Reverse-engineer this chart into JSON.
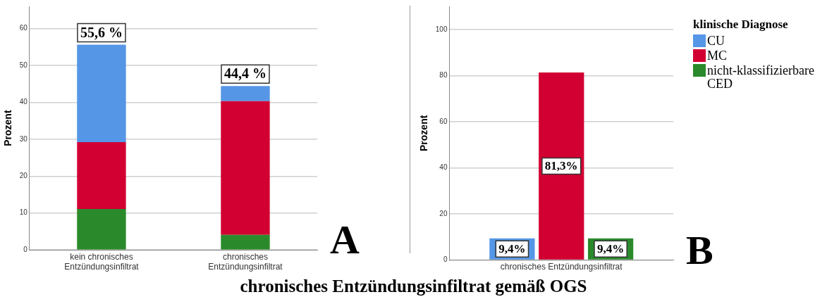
{
  "chart_data": [
    {
      "type": "bar",
      "stacked": true,
      "categories": [
        "kein chronisches\nEntzündungsinfiltrat",
        "chronisches\nEntzündungsinfiltrat"
      ],
      "ylabel": "Prozent",
      "xlabel": "chronisches Entzündungsinfiltrat gemäß OGS",
      "ylim": [
        0,
        66
      ],
      "yticks": [
        0,
        10,
        20,
        30,
        40,
        50,
        60
      ],
      "grid": "y",
      "legend": false,
      "series": [
        {
          "color": "#2a8a2b",
          "values": [
            11.1,
            4.1
          ]
        },
        {
          "color": "#d20032",
          "values": [
            18.1,
            36.2
          ]
        },
        {
          "color": "#5596e6",
          "values": [
            26.4,
            4.1
          ]
        }
      ],
      "totals": [
        "55,6 %",
        "44,4 %"
      ],
      "annotations": [
        "A"
      ]
    },
    {
      "type": "bar",
      "categories": [
        "chronisches Entzündungsinfiltrat"
      ],
      "ylabel": "Prozent",
      "ylim": [
        0,
        110
      ],
      "yticks": [
        0,
        20,
        40,
        60,
        80,
        100
      ],
      "grid": "y",
      "legend": "right",
      "legend_title": "klinische Diagnose",
      "series": [
        {
          "name": "CU",
          "color": "#5596e6",
          "values": [
            9.4
          ],
          "value_labels": [
            "9,4%"
          ]
        },
        {
          "name": "MC",
          "color": "#d20032",
          "values": [
            81.3
          ],
          "value_labels": [
            "81,3%"
          ]
        },
        {
          "name": "nicht-klassifizierbare CED",
          "color": "#2a8a2b",
          "values": [
            9.4
          ],
          "value_labels": [
            "9,4%"
          ]
        }
      ],
      "annotations": [
        "B"
      ]
    }
  ]
}
